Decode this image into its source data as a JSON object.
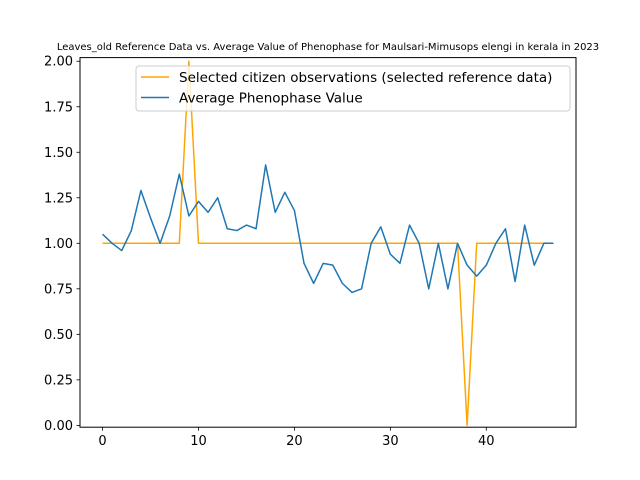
{
  "chart_data": {
    "type": "line",
    "title": "Leaves_old Reference Data vs. Average Value of Phenophase for Maulsari-Mimusops elengi in kerala in 2023",
    "xlabel": "",
    "ylabel": "",
    "xlim": [
      -2.35,
      49.35
    ],
    "ylim": [
      -0.01,
      2.02
    ],
    "xticks": [
      0,
      10,
      20,
      30,
      40
    ],
    "yticks": [
      0.0,
      0.25,
      0.5,
      0.75,
      1.0,
      1.25,
      1.5,
      1.75,
      2.0
    ],
    "grid": false,
    "legend_position": "top-right",
    "series": [
      {
        "name": "Selected citizen observations (selected reference data)",
        "color": "#ffa500",
        "x": [
          0,
          1,
          2,
          3,
          4,
          5,
          6,
          7,
          8,
          9,
          10,
          11,
          12,
          13,
          14,
          15,
          16,
          17,
          18,
          19,
          20,
          21,
          22,
          23,
          24,
          25,
          26,
          27,
          28,
          29,
          30,
          31,
          32,
          33,
          34,
          35,
          36,
          37,
          38,
          39,
          40,
          41,
          42,
          43,
          44,
          45,
          46,
          47
        ],
        "values": [
          1,
          1,
          1,
          1,
          1,
          1,
          1,
          1,
          1,
          2,
          1,
          1,
          1,
          1,
          1,
          1,
          1,
          1,
          1,
          1,
          1,
          1,
          1,
          1,
          1,
          1,
          1,
          1,
          1,
          1,
          1,
          1,
          1,
          1,
          1,
          1,
          1,
          1,
          0,
          1,
          1,
          1,
          1,
          1,
          1,
          1,
          1,
          1
        ]
      },
      {
        "name": "Average Phenophase Value",
        "color": "#1f77b4",
        "x": [
          0,
          1,
          2,
          3,
          4,
          5,
          6,
          7,
          8,
          9,
          10,
          11,
          12,
          13,
          14,
          15,
          16,
          17,
          18,
          19,
          20,
          21,
          22,
          23,
          24,
          25,
          26,
          27,
          28,
          29,
          30,
          31,
          32,
          33,
          34,
          35,
          36,
          37,
          38,
          39,
          40,
          41,
          42,
          43,
          44,
          45,
          46,
          47
        ],
        "values": [
          1.05,
          1.0,
          0.96,
          1.07,
          1.29,
          1.14,
          1.0,
          1.15,
          1.38,
          1.15,
          1.23,
          1.17,
          1.25,
          1.08,
          1.07,
          1.1,
          1.08,
          1.43,
          1.17,
          1.28,
          1.18,
          0.89,
          0.78,
          0.89,
          0.88,
          0.78,
          0.73,
          0.75,
          1.0,
          1.09,
          0.94,
          0.89,
          1.1,
          1.0,
          0.75,
          1.0,
          0.75,
          1.0,
          0.88,
          0.82,
          0.88,
          1.0,
          1.08,
          0.79,
          1.1,
          0.88,
          1.0,
          1.0
        ]
      }
    ]
  }
}
